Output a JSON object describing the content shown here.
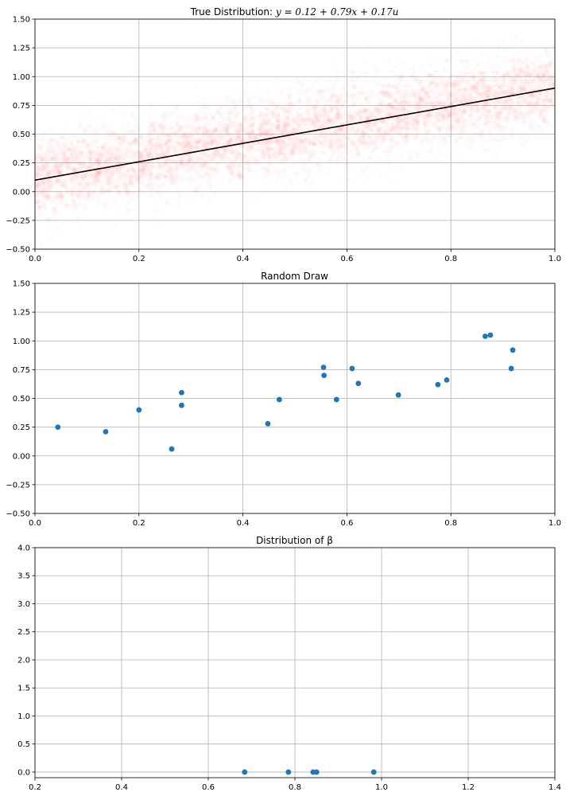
{
  "chart_data": [
    {
      "type": "scatter",
      "title_prefix": "True Distribution: ",
      "title_formula": "y = 0.12 + 0.79x + 0.17u",
      "xlim": [
        0,
        1
      ],
      "ylim": [
        -0.5,
        1.5
      ],
      "xticks": [
        0.0,
        0.2,
        0.4,
        0.6,
        0.8,
        1.0
      ],
      "xtick_labels": [
        "0.0",
        "0.2",
        "0.4",
        "0.6",
        "0.8",
        "1.0"
      ],
      "yticks": [
        -0.5,
        -0.25,
        0.0,
        0.25,
        0.5,
        0.75,
        1.0,
        1.25,
        1.5
      ],
      "ytick_labels": [
        "−0.50",
        "−0.25",
        "0.00",
        "0.25",
        "0.50",
        "0.75",
        "1.00",
        "1.25",
        "1.50"
      ],
      "grid": true,
      "cloud": {
        "intercept": 0.12,
        "slope": 0.79,
        "noise_sd": 0.17,
        "color": "#ff0000",
        "alpha": 0.02
      },
      "line": {
        "intercept": 0.1,
        "slope": 0.8,
        "color": "#000000"
      }
    },
    {
      "type": "scatter",
      "title": "Random Draw",
      "xlim": [
        0,
        1
      ],
      "ylim": [
        -0.5,
        1.5
      ],
      "xticks": [
        0.0,
        0.2,
        0.4,
        0.6,
        0.8,
        1.0
      ],
      "xtick_labels": [
        "0.0",
        "0.2",
        "0.4",
        "0.6",
        "0.8",
        "1.0"
      ],
      "yticks": [
        -0.5,
        -0.25,
        0.0,
        0.25,
        0.5,
        0.75,
        1.0,
        1.25,
        1.5
      ],
      "ytick_labels": [
        "−0.50",
        "−0.25",
        "0.00",
        "0.25",
        "0.50",
        "0.75",
        "1.00",
        "1.25",
        "1.50"
      ],
      "grid": true,
      "color": "#1f77b4",
      "points": [
        [
          0.044,
          0.25
        ],
        [
          0.136,
          0.21
        ],
        [
          0.2,
          0.4
        ],
        [
          0.263,
          0.06
        ],
        [
          0.282,
          0.55
        ],
        [
          0.282,
          0.44
        ],
        [
          0.448,
          0.28
        ],
        [
          0.47,
          0.49
        ],
        [
          0.555,
          0.77
        ],
        [
          0.556,
          0.7
        ],
        [
          0.58,
          0.49
        ],
        [
          0.61,
          0.76
        ],
        [
          0.622,
          0.63
        ],
        [
          0.699,
          0.53
        ],
        [
          0.775,
          0.62
        ],
        [
          0.792,
          0.66
        ],
        [
          0.866,
          1.04
        ],
        [
          0.876,
          1.05
        ],
        [
          0.916,
          0.76
        ],
        [
          0.919,
          0.92
        ]
      ]
    },
    {
      "type": "scatter",
      "title": "Distribution of β",
      "xlim": [
        0.2,
        1.4
      ],
      "ylim": [
        -0.1,
        4.0
      ],
      "xticks": [
        0.2,
        0.4,
        0.6,
        0.8,
        1.0,
        1.2,
        1.4
      ],
      "xtick_labels": [
        "0.2",
        "0.4",
        "0.6",
        "0.8",
        "1.0",
        "1.2",
        "1.4"
      ],
      "yticks": [
        0.0,
        0.5,
        1.0,
        1.5,
        2.0,
        2.5,
        3.0,
        3.5,
        4.0
      ],
      "ytick_labels": [
        "0.0",
        "0.5",
        "1.0",
        "1.5",
        "2.0",
        "2.5",
        "3.0",
        "3.5",
        "4.0"
      ],
      "grid": true,
      "color": "#1f77b4",
      "points": [
        [
          0.684,
          0.0
        ],
        [
          0.785,
          0.0
        ],
        [
          0.842,
          0.0
        ],
        [
          0.85,
          0.0
        ],
        [
          0.982,
          0.0
        ]
      ]
    }
  ]
}
